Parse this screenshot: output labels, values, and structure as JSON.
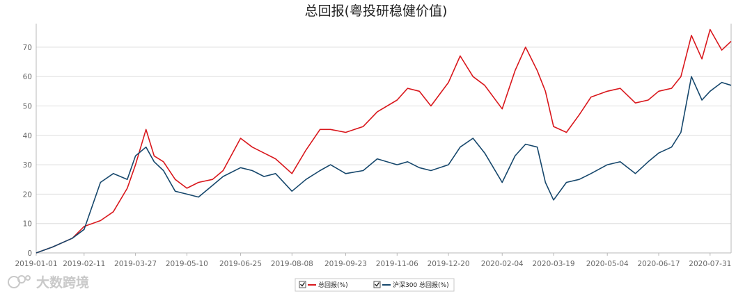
{
  "chart_data": {
    "type": "line",
    "title": "总回报(粤投研稳健价值)",
    "xlabel": "",
    "ylabel": "",
    "ylim": [
      0,
      78
    ],
    "y_ticks": [
      0,
      10,
      20,
      30,
      40,
      50,
      60,
      70
    ],
    "grid": true,
    "legend_position": "bottom-center",
    "x_ticks": [
      "2019-01-01",
      "2019-02-11",
      "2019-03-27",
      "2019-05-10",
      "2019-06-25",
      "2019-08-08",
      "2019-09-23",
      "2019-11-06",
      "2019-12-20",
      "2020-02-04",
      "2020-03-19",
      "2020-05-04",
      "2020-06-17",
      "2020-07-31"
    ],
    "x": [
      "2019-01-01",
      "2019-01-15",
      "2019-02-01",
      "2019-02-11",
      "2019-02-25",
      "2019-03-08",
      "2019-03-20",
      "2019-03-27",
      "2019-04-05",
      "2019-04-12",
      "2019-04-20",
      "2019-04-30",
      "2019-05-10",
      "2019-05-20",
      "2019-06-01",
      "2019-06-10",
      "2019-06-25",
      "2019-07-05",
      "2019-07-15",
      "2019-07-25",
      "2019-08-08",
      "2019-08-20",
      "2019-09-01",
      "2019-09-10",
      "2019-09-23",
      "2019-10-08",
      "2019-10-20",
      "2019-11-06",
      "2019-11-15",
      "2019-11-25",
      "2019-12-05",
      "2019-12-20",
      "2019-12-30",
      "2020-01-10",
      "2020-01-20",
      "2020-02-04",
      "2020-02-15",
      "2020-02-24",
      "2020-03-05",
      "2020-03-12",
      "2020-03-19",
      "2020-03-30",
      "2020-04-10",
      "2020-04-20",
      "2020-05-04",
      "2020-05-15",
      "2020-05-28",
      "2020-06-08",
      "2020-06-17",
      "2020-06-28",
      "2020-07-06",
      "2020-07-15",
      "2020-07-24",
      "2020-07-31",
      "2020-08-10",
      "2020-08-18"
    ],
    "series": [
      {
        "name": "总回报(%)",
        "color": "#d9171c",
        "values": [
          0,
          2,
          5,
          9,
          11,
          14,
          22,
          30,
          42,
          33,
          31,
          25,
          22,
          24,
          25,
          28,
          39,
          36,
          34,
          32,
          27,
          35,
          42,
          42,
          41,
          43,
          48,
          52,
          56,
          55,
          50,
          58,
          67,
          60,
          57,
          49,
          62,
          70,
          62,
          55,
          43,
          41,
          47,
          53,
          55,
          56,
          51,
          52,
          55,
          56,
          60,
          74,
          66,
          76,
          69,
          72
        ]
      },
      {
        "name": "沪深300 总回报(%)",
        "color": "#16476c",
        "values": [
          0,
          2,
          5,
          8,
          24,
          27,
          25,
          33,
          36,
          31,
          28,
          21,
          20,
          19,
          23,
          26,
          29,
          28,
          26,
          27,
          21,
          25,
          28,
          30,
          27,
          28,
          32,
          30,
          31,
          29,
          28,
          30,
          36,
          39,
          34,
          24,
          33,
          37,
          36,
          24,
          18,
          24,
          25,
          27,
          30,
          31,
          27,
          31,
          34,
          36,
          41,
          60,
          52,
          55,
          58,
          57
        ]
      }
    ]
  },
  "watermark": {
    "text": "大数跨境"
  }
}
